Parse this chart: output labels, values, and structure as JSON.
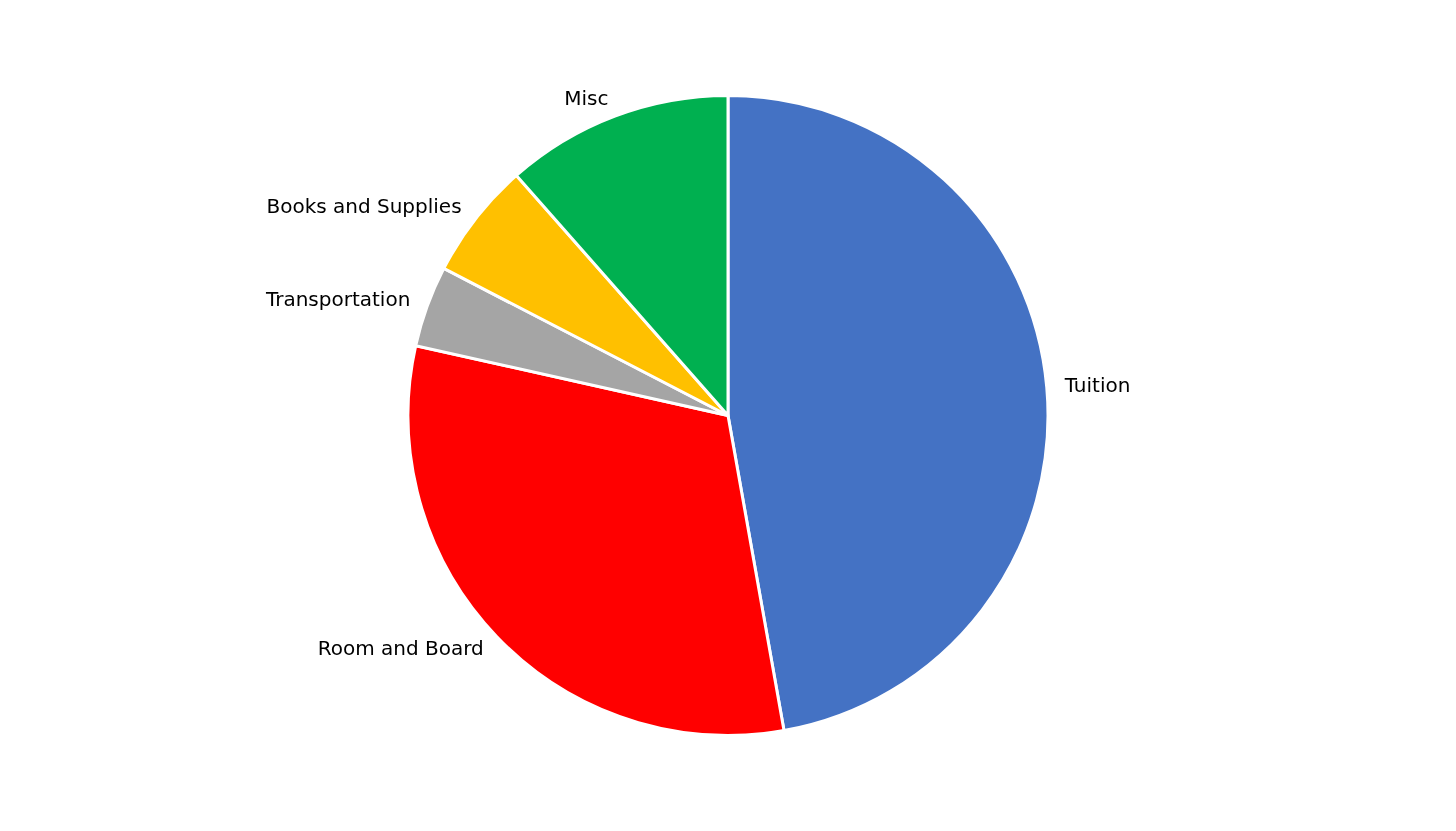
{
  "chart_data": {
    "type": "pie",
    "categories": [
      "Tuition",
      "Room and Board",
      "Transportation",
      "Books and Supplies",
      "Misc"
    ],
    "values": [
      47.2,
      31.3,
      4.1,
      5.9,
      11.5
    ],
    "colors": [
      "#4472c4",
      "#ff0000",
      "#a5a5a5",
      "#ffc000",
      "#00b050"
    ],
    "legend": false
  }
}
